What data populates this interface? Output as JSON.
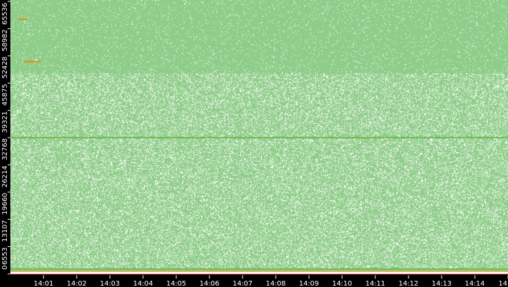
{
  "chart_data": {
    "type": "heatmap",
    "title": "",
    "xlabel": "",
    "ylabel": "",
    "x_tick_labels": [
      "14:01",
      "14:02",
      "14:03",
      "14:04",
      "14:05",
      "14:06",
      "14:07",
      "14:08",
      "14:09",
      "14:10",
      "14:11",
      "14:12",
      "14:13",
      "14:14",
      "14"
    ],
    "y_tick_labels": [
      "0",
      "6553",
      "13107",
      "19660",
      "26214",
      "32768",
      "39321",
      "45875",
      "52428",
      "58982",
      "65536"
    ],
    "y_ticks": [
      0,
      6553,
      13107,
      19660,
      26214,
      32768,
      39321,
      45875,
      52428,
      58982,
      65536
    ],
    "ylim": [
      0,
      65536
    ],
    "x_minutes_range": [
      "14:00",
      "14:15"
    ],
    "grid": false,
    "regions": [
      {
        "y_range": [
          48400,
          65536
        ],
        "density": "high"
      },
      {
        "y_range": [
          1000,
          48400
        ],
        "density": "medium"
      }
    ],
    "highlights": [
      {
        "y": 32768,
        "x_range": [
          "14:00",
          "14:15"
        ],
        "level": "medium"
      },
      {
        "y": 51000,
        "x_range": [
          "14:00:25",
          "14:00:55"
        ],
        "level": "high"
      },
      {
        "y": 61200,
        "x_range": [
          "14:00:15",
          "14:00:30"
        ],
        "level": "high"
      },
      {
        "y": 1100,
        "x_range": [
          "14:00",
          "14:15"
        ],
        "level": "medium"
      },
      {
        "y": 500,
        "x_range": [
          "14:00",
          "14:15"
        ],
        "level": "high"
      }
    ],
    "colors": {
      "background": "#000000",
      "low": "#8fcd8a",
      "medium": "#6cb84a",
      "high": "#f08a10",
      "max": "#e02020",
      "empty": "#ffffff"
    }
  }
}
